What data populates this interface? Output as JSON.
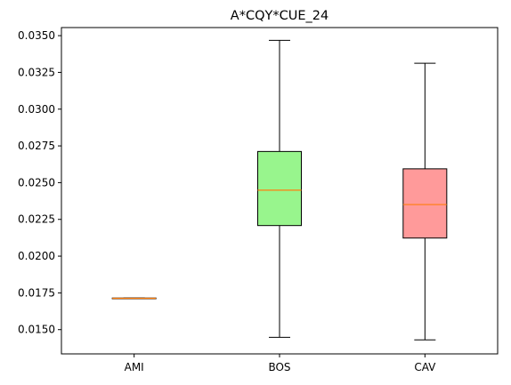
{
  "chart_data": {
    "type": "box",
    "title": "A*CQY*CUE_24",
    "xlabel": "",
    "ylabel": "",
    "ylim": [
      0.01335,
      0.03555
    ],
    "y_ticks": [
      0.015,
      0.0175,
      0.02,
      0.0225,
      0.025,
      0.0275,
      0.03,
      0.0325,
      0.035
    ],
    "y_tick_labels": [
      "0.0150",
      "0.0175",
      "0.0200",
      "0.0225",
      "0.0250",
      "0.0275",
      "0.0300",
      "0.0325",
      "0.0350"
    ],
    "grid": false,
    "categories": [
      "AMI",
      "BOS",
      "CAV"
    ],
    "boxes": [
      {
        "category": "AMI",
        "whisker_low": 0.01713,
        "q1": 0.01713,
        "median": 0.01713,
        "q3": 0.01715,
        "whisker_high": 0.01715,
        "color": "#98f58d"
      },
      {
        "category": "BOS",
        "whisker_low": 0.01448,
        "q1": 0.02208,
        "median": 0.02449,
        "q3": 0.02712,
        "whisker_high": 0.03468,
        "color": "#98f58d"
      },
      {
        "category": "CAV",
        "whisker_low": 0.0143,
        "q1": 0.02123,
        "median": 0.02351,
        "q3": 0.02594,
        "whisker_high": 0.03312,
        "color": "#ff9a9a"
      }
    ],
    "median_color": "#ff7f0e"
  }
}
